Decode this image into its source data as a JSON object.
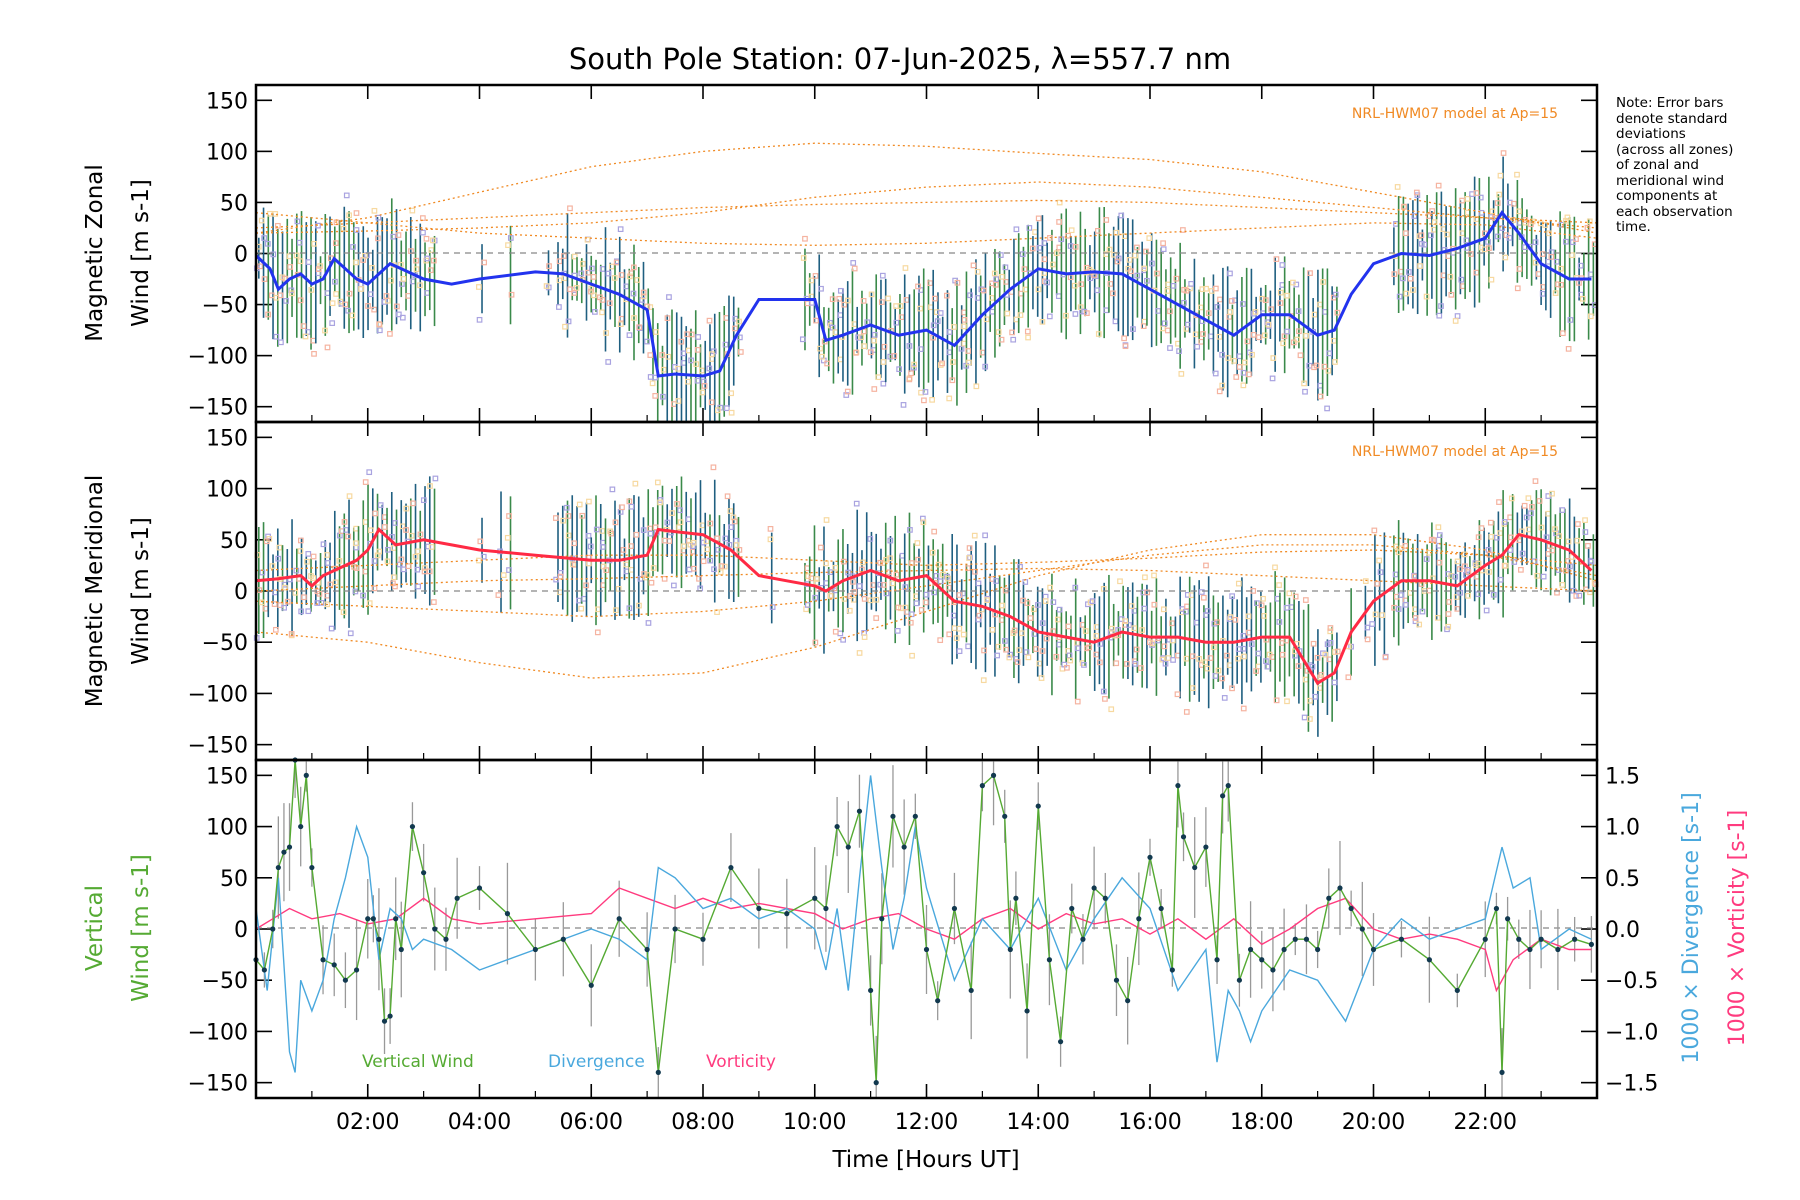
{
  "chart_data": [
    {
      "type": "line",
      "panel": "zonal",
      "title": "South Pole Station: 07-Jun-2025, λ=557.7 nm",
      "ylabel_lines": [
        "Magnetic Zonal",
        "Wind [m s-1]"
      ],
      "ylim": [
        -165,
        165
      ],
      "yticks": [
        -150,
        -100,
        -50,
        0,
        50,
        100,
        150
      ],
      "xlim": [
        0,
        24
      ],
      "model_label": "NRL-HWM07 model at Ap=15",
      "mean_color": "#2233ee",
      "series": [
        {
          "name": "Mean zonal wind",
          "x": [
            0,
            0.25,
            0.4,
            0.6,
            0.8,
            1.0,
            1.2,
            1.4,
            1.6,
            1.8,
            2.0,
            2.2,
            2.4,
            2.6,
            2.8,
            3.0,
            3.5,
            4.0,
            5.0,
            5.5,
            6.0,
            6.5,
            7.0,
            7.2,
            7.5,
            8.0,
            8.3,
            8.6,
            9.0,
            9.5,
            10.0,
            10.2,
            10.5,
            11.0,
            11.5,
            12.0,
            12.5,
            13.0,
            13.5,
            14.0,
            14.5,
            15.0,
            15.5,
            16.0,
            16.5,
            17.0,
            17.5,
            18.0,
            18.5,
            19.0,
            19.3,
            19.6,
            20.0,
            20.5,
            21.0,
            21.5,
            22.0,
            22.3,
            22.6,
            23.0,
            23.5,
            23.9
          ],
          "y": [
            -2,
            -15,
            -35,
            -25,
            -20,
            -30,
            -25,
            -5,
            -15,
            -25,
            -30,
            -20,
            -10,
            -15,
            -20,
            -25,
            -30,
            -25,
            -18,
            -20,
            -30,
            -40,
            -55,
            -120,
            -118,
            -120,
            -115,
            -80,
            -45,
            -45,
            -45,
            -85,
            -80,
            -70,
            -80,
            -75,
            -90,
            -60,
            -35,
            -15,
            -20,
            -18,
            -20,
            -35,
            -50,
            -65,
            -80,
            -60,
            -60,
            -80,
            -75,
            -40,
            -10,
            0,
            -2,
            5,
            15,
            40,
            20,
            -10,
            -25,
            -25
          ]
        },
        {
          "name": "Model zonal 1",
          "x": [
            0,
            2,
            4,
            6,
            8,
            10,
            12,
            14,
            16,
            18,
            20,
            22,
            24
          ],
          "y": [
            20,
            35,
            60,
            85,
            100,
            108,
            105,
            98,
            92,
            80,
            60,
            40,
            20
          ]
        },
        {
          "name": "Model zonal 2",
          "x": [
            0,
            2,
            4,
            6,
            8,
            10,
            12,
            14,
            16,
            18,
            20,
            22,
            24
          ],
          "y": [
            25,
            30,
            35,
            40,
            45,
            48,
            50,
            52,
            50,
            45,
            40,
            35,
            30
          ]
        },
        {
          "name": "Model zonal 3",
          "x": [
            0,
            2,
            4,
            6,
            8,
            10,
            12,
            14,
            16,
            18,
            20,
            22,
            24
          ],
          "y": [
            20,
            22,
            25,
            30,
            40,
            55,
            65,
            70,
            65,
            55,
            45,
            35,
            25
          ]
        },
        {
          "name": "Model zonal 4",
          "x": [
            0,
            2,
            4,
            6,
            8,
            10,
            12,
            14,
            16,
            18,
            20,
            22,
            24
          ],
          "y": [
            40,
            30,
            20,
            15,
            10,
            8,
            10,
            15,
            20,
            25,
            30,
            28,
            15
          ]
        }
      ]
    },
    {
      "type": "line",
      "panel": "meridional",
      "ylabel_lines": [
        "Magnetic Meridional",
        "Wind [m s-1]"
      ],
      "ylim": [
        -165,
        165
      ],
      "yticks": [
        -150,
        -100,
        -50,
        0,
        50,
        100,
        150
      ],
      "xlim": [
        0,
        24
      ],
      "model_label": "NRL-HWM07 model at Ap=15",
      "mean_color": "#ff2a44",
      "series": [
        {
          "name": "Mean meridional wind",
          "x": [
            0,
            0.4,
            0.8,
            1.0,
            1.2,
            1.6,
            1.8,
            2.0,
            2.2,
            2.5,
            3.0,
            3.5,
            4.0,
            5.0,
            6.0,
            6.5,
            7.0,
            7.2,
            7.5,
            8.0,
            8.5,
            9.0,
            9.5,
            10.0,
            10.2,
            10.5,
            11.0,
            11.5,
            12.0,
            12.5,
            13.0,
            13.5,
            14.0,
            14.5,
            15.0,
            15.5,
            16.0,
            16.5,
            17.0,
            17.5,
            18.0,
            18.5,
            19.0,
            19.3,
            19.6,
            20.0,
            20.5,
            21.0,
            21.5,
            22.0,
            22.3,
            22.6,
            23.0,
            23.5,
            23.9
          ],
          "y": [
            10,
            12,
            15,
            5,
            15,
            25,
            30,
            40,
            60,
            45,
            50,
            45,
            40,
            35,
            30,
            30,
            35,
            60,
            58,
            55,
            40,
            15,
            10,
            5,
            0,
            10,
            20,
            10,
            15,
            -10,
            -15,
            -25,
            -40,
            -45,
            -50,
            -40,
            -45,
            -45,
            -50,
            -50,
            -45,
            -45,
            -90,
            -80,
            -40,
            -10,
            10,
            10,
            5,
            25,
            35,
            55,
            50,
            40,
            20
          ]
        },
        {
          "name": "Model meridional 1",
          "x": [
            0,
            2,
            4,
            6,
            8,
            10,
            12,
            14,
            16,
            18,
            20,
            22,
            24
          ],
          "y": [
            -40,
            -50,
            -70,
            -85,
            -80,
            -55,
            -20,
            15,
            40,
            55,
            55,
            40,
            10
          ]
        },
        {
          "name": "Model meridional 2",
          "x": [
            0,
            2,
            4,
            6,
            8,
            10,
            12,
            14,
            16,
            18,
            20,
            22,
            24
          ],
          "y": [
            20,
            25,
            30,
            35,
            35,
            30,
            25,
            28,
            32,
            38,
            40,
            35,
            25
          ]
        },
        {
          "name": "Model meridional 3",
          "x": [
            0,
            2,
            4,
            6,
            8,
            10,
            12,
            14,
            16,
            18,
            20,
            22,
            24
          ],
          "y": [
            -10,
            -15,
            -20,
            -25,
            -20,
            -10,
            5,
            20,
            35,
            45,
            45,
            35,
            15
          ]
        },
        {
          "name": "Model meridional 4",
          "x": [
            0,
            2,
            4,
            6,
            8,
            10,
            12,
            14,
            16,
            18,
            20,
            22,
            24
          ],
          "y": [
            0,
            5,
            10,
            12,
            15,
            18,
            20,
            22,
            20,
            15,
            10,
            5,
            0
          ]
        }
      ]
    },
    {
      "type": "line",
      "panel": "vertical",
      "ylabel_lines": [
        "Vertical",
        "Wind [m s-1]"
      ],
      "ylim": [
        -165,
        165
      ],
      "yticks": [
        -150,
        -100,
        -50,
        0,
        50,
        100,
        150
      ],
      "y2label": "1000 × Divergence [s-1]",
      "y3label": "1000 × Vorticity [s-1]",
      "y2lim": [
        -1.65,
        1.65
      ],
      "y2ticks": [
        -1.5,
        -1.0,
        -0.5,
        0.0,
        0.5,
        1.0,
        1.5
      ],
      "y2ticklabels": [
        "−1.5",
        "−1.0",
        "−0.5",
        "0.0",
        "0.5",
        "1.0",
        "1.5"
      ],
      "xlim": [
        0,
        24
      ],
      "xticks": [
        2,
        4,
        6,
        8,
        10,
        12,
        14,
        16,
        18,
        20,
        22
      ],
      "xticklabels": [
        "02:00",
        "04:00",
        "06:00",
        "08:00",
        "10:00",
        "12:00",
        "14:00",
        "16:00",
        "18:00",
        "20:00",
        "22:00"
      ],
      "xlabel": "Time [Hours UT]",
      "legend": [
        {
          "label": "Vertical Wind",
          "color": "#55aa33"
        },
        {
          "label": "Divergence",
          "color": "#4aa8dd"
        },
        {
          "label": "Vorticity",
          "color": "#ff3b7f"
        }
      ],
      "series": [
        {
          "name": "Vertical Wind",
          "color": "#55aa33",
          "x": [
            0.0,
            0.15,
            0.3,
            0.4,
            0.5,
            0.6,
            0.7,
            0.8,
            0.9,
            1.0,
            1.2,
            1.4,
            1.6,
            1.8,
            2.0,
            2.1,
            2.2,
            2.3,
            2.4,
            2.5,
            2.6,
            2.8,
            3.0,
            3.2,
            3.4,
            3.6,
            4.0,
            4.5,
            5.0,
            5.5,
            6.0,
            6.5,
            7.0,
            7.2,
            7.5,
            8.0,
            8.5,
            9.0,
            9.5,
            10.0,
            10.2,
            10.4,
            10.6,
            10.8,
            11.0,
            11.1,
            11.2,
            11.4,
            11.6,
            11.8,
            12.0,
            12.2,
            12.5,
            12.8,
            13.0,
            13.2,
            13.4,
            13.5,
            13.6,
            13.8,
            14.0,
            14.2,
            14.4,
            14.6,
            14.8,
            15.0,
            15.2,
            15.4,
            15.6,
            15.8,
            16.0,
            16.2,
            16.4,
            16.5,
            16.6,
            16.8,
            17.0,
            17.2,
            17.3,
            17.4,
            17.6,
            17.8,
            18.0,
            18.2,
            18.4,
            18.6,
            18.8,
            19.0,
            19.2,
            19.4,
            19.6,
            19.8,
            20.0,
            20.5,
            21.0,
            21.5,
            22.0,
            22.2,
            22.3,
            22.4,
            22.6,
            22.8,
            23.0,
            23.3,
            23.6,
            23.9
          ],
          "y": [
            -30,
            -40,
            0,
            60,
            75,
            80,
            165,
            100,
            150,
            60,
            -30,
            -35,
            -50,
            -40,
            10,
            10,
            -10,
            -90,
            -85,
            10,
            -20,
            100,
            55,
            0,
            -10,
            30,
            40,
            15,
            -20,
            -10,
            -55,
            10,
            -20,
            -140,
            0,
            -10,
            60,
            20,
            15,
            30,
            20,
            100,
            80,
            115,
            -60,
            -150,
            10,
            110,
            80,
            110,
            -20,
            -70,
            20,
            -60,
            140,
            150,
            110,
            -20,
            30,
            -80,
            120,
            -30,
            -110,
            20,
            -10,
            40,
            30,
            -50,
            -70,
            10,
            70,
            20,
            -40,
            140,
            90,
            60,
            80,
            -30,
            130,
            140,
            -50,
            -20,
            -30,
            -40,
            -20,
            -10,
            -10,
            -20,
            30,
            40,
            20,
            0,
            -20,
            -10,
            -30,
            -60,
            -10,
            20,
            -140,
            10,
            -10,
            -20,
            -10,
            -20,
            -10,
            -15
          ]
        },
        {
          "name": "Divergence",
          "color": "#4aa8dd",
          "x": [
            0.0,
            0.2,
            0.4,
            0.6,
            0.7,
            0.8,
            1.0,
            1.2,
            1.4,
            1.6,
            1.8,
            2.0,
            2.2,
            2.4,
            2.6,
            2.8,
            3.0,
            3.5,
            4.0,
            5.0,
            6.0,
            6.5,
            7.0,
            7.2,
            7.5,
            8.0,
            8.5,
            9.0,
            9.5,
            10.0,
            10.2,
            10.4,
            10.6,
            10.8,
            11.0,
            11.2,
            11.4,
            11.6,
            11.8,
            12.0,
            12.5,
            13.0,
            13.5,
            14.0,
            14.5,
            15.0,
            15.5,
            16.0,
            16.5,
            17.0,
            17.2,
            17.4,
            17.6,
            17.8,
            18.0,
            18.5,
            19.0,
            19.5,
            20.0,
            20.5,
            21.0,
            21.5,
            22.0,
            22.3,
            22.5,
            22.8,
            23.0,
            23.5,
            23.9
          ],
          "y": [
            0.2,
            -0.6,
            0.5,
            -1.2,
            -1.4,
            -0.5,
            -0.8,
            -0.5,
            0.1,
            0.5,
            1.0,
            0.7,
            -0.3,
            0.2,
            0.1,
            -0.2,
            -0.1,
            -0.2,
            -0.4,
            -0.2,
            0.0,
            -0.1,
            -0.3,
            0.6,
            0.5,
            0.2,
            0.3,
            0.1,
            0.2,
            0.0,
            -0.4,
            0.2,
            -0.6,
            0.5,
            1.5,
            0.6,
            -0.2,
            0.3,
            1.0,
            0.4,
            -0.5,
            0.1,
            -0.2,
            0.3,
            -0.4,
            0.1,
            0.5,
            0.2,
            -0.6,
            -0.2,
            -1.3,
            -0.6,
            -0.8,
            -1.1,
            -0.8,
            -0.4,
            -0.5,
            -0.9,
            -0.2,
            0.1,
            -0.1,
            0.0,
            0.1,
            0.8,
            0.4,
            0.5,
            -0.2,
            0.0,
            -0.1
          ]
        },
        {
          "name": "Vorticity",
          "color": "#ff3b7f",
          "x": [
            0.0,
            0.3,
            0.6,
            1.0,
            1.5,
            2.0,
            2.5,
            3.0,
            3.5,
            4.0,
            5.0,
            6.0,
            6.5,
            7.0,
            7.5,
            8.0,
            8.5,
            9.0,
            9.5,
            10.0,
            10.5,
            11.0,
            11.5,
            12.0,
            12.5,
            13.0,
            13.5,
            14.0,
            14.5,
            15.0,
            15.5,
            16.0,
            16.5,
            17.0,
            17.5,
            18.0,
            18.5,
            19.0,
            19.5,
            20.0,
            20.5,
            21.0,
            21.5,
            22.0,
            22.2,
            22.5,
            23.0,
            23.5,
            23.9
          ],
          "y": [
            0.0,
            0.1,
            0.2,
            0.1,
            0.15,
            0.05,
            0.1,
            0.3,
            0.1,
            0.05,
            0.1,
            0.15,
            0.4,
            0.3,
            0.2,
            0.3,
            0.2,
            0.25,
            0.2,
            0.15,
            0.0,
            0.1,
            0.15,
            0.0,
            -0.1,
            0.1,
            0.2,
            0.0,
            0.15,
            0.05,
            0.1,
            -0.05,
            0.1,
            -0.1,
            0.1,
            -0.15,
            0.0,
            0.2,
            0.3,
            0.0,
            -0.1,
            -0.05,
            -0.1,
            -0.2,
            -0.6,
            -0.3,
            -0.1,
            -0.2,
            -0.2
          ]
        }
      ]
    }
  ],
  "note": {
    "lines": [
      "Note: Error bars",
      "denote standard",
      "deviations",
      "(across all zones)",
      "of zonal and",
      "meridional wind",
      "components at",
      "each observation",
      "time."
    ]
  }
}
